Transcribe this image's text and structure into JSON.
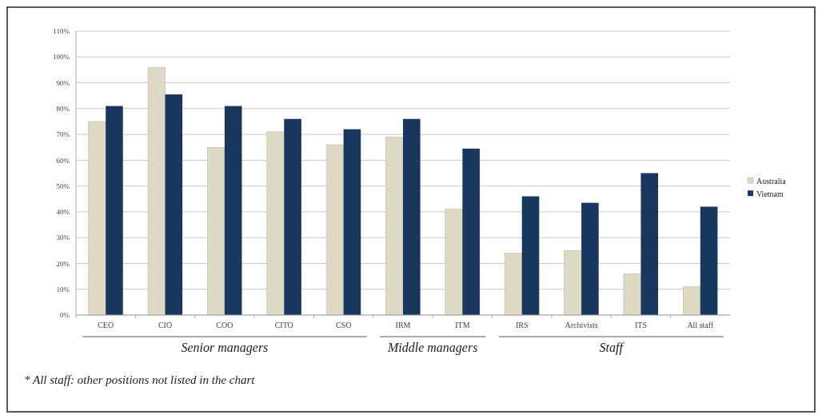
{
  "chart_data": {
    "type": "bar",
    "categories": [
      "CEO",
      "CIO",
      "COO",
      "CITO",
      "CSO",
      "IRM",
      "ITM",
      "IRS",
      "Archivists",
      "ITS",
      "All staff"
    ],
    "series": [
      {
        "name": "Australia",
        "color": "#ddd9c3",
        "values": [
          75,
          96,
          65,
          71,
          66,
          69,
          41,
          24,
          25,
          16,
          11
        ]
      },
      {
        "name": "Vietnam",
        "color": "#17375e",
        "values": [
          81,
          85.5,
          81,
          76,
          72,
          76,
          64.5,
          46,
          43.5,
          55,
          42
        ]
      }
    ],
    "ylim": [
      0,
      110
    ],
    "yticks": [
      {
        "value": 0,
        "label": "0%"
      },
      {
        "value": 10,
        "label": "10%"
      },
      {
        "value": 20,
        "label": "20%"
      },
      {
        "value": 30,
        "label": "30%"
      },
      {
        "value": 40,
        "label": "40%"
      },
      {
        "value": 50,
        "label": "50%"
      },
      {
        "value": 60,
        "label": "60%"
      },
      {
        "value": 70,
        "label": "70%"
      },
      {
        "value": 80,
        "label": "80%"
      },
      {
        "value": 90,
        "label": "90%"
      },
      {
        "value": 100,
        "label": "100%"
      },
      {
        "value": 110,
        "label": "110%"
      }
    ],
    "grid": "y",
    "legend": "right",
    "annotations": [
      "Senior managers",
      "Middle managers",
      "Staff",
      "* All staff: other positions not listed in the chart"
    ]
  }
}
